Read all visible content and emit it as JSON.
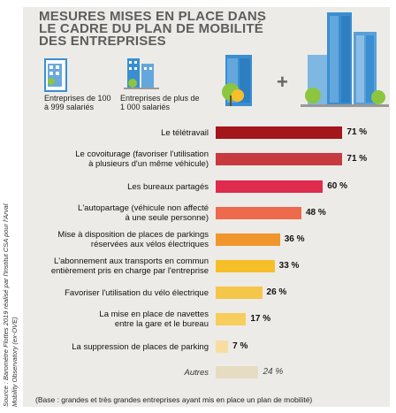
{
  "title": "MESURES MISES EN PLACE DANS LE CADRE DU PLAN DE MOBILITÉ DES ENTREPRISES",
  "source": "Source : Baromètre Flottes 2019 réalisé par l'Institut CSA pour l'Arval Mobility Observatory (ex-OVE)",
  "legend": {
    "small": "Entreprises de 100 à 999 salariés",
    "large": "Entreprises de plus de 1 000 salariés",
    "plus": "+"
  },
  "footnote": "(Base : grandes et très grandes entreprises ayant mis en place un plan de mobilité)",
  "colors": {
    "background": "#ecebe7",
    "building_blue": "#3a8fd0",
    "tree_green": "#8cc63f"
  },
  "chart_data": {
    "type": "bar",
    "orientation": "horizontal",
    "categories": [
      "Le télétravail",
      "Le covoiturage (favoriser l'utilisation à plusieurs d'un même véhicule)",
      "Les bureaux partagés",
      "L'autopartage (véhicule non affecté à une seule personne)",
      "Mise à disposition de places de parkings réservées aux vélos électriques",
      "L'abonnement aux transports en commun entièrement pris en charge par l'entreprise",
      "Favoriser l'utilisation du vélo électrique",
      "La mise en place de navettes entre la gare et le bureau",
      "La suppression de places de parking",
      "Autres"
    ],
    "label_lines": [
      [
        "Le télétravail"
      ],
      [
        "Le covoiturage (favoriser l'utilisation",
        "à plusieurs d'un même véhicule)"
      ],
      [
        "Les bureaux partagés"
      ],
      [
        "L'autopartage (véhicule non affecté",
        "à une seule personne)"
      ],
      [
        "Mise à disposition de places de parkings",
        "réservées aux vélos électriques"
      ],
      [
        "L'abonnement aux transports en commun",
        "entièrement pris en charge par l'entreprise"
      ],
      [
        "Favoriser l'utilisation du vélo électrique"
      ],
      [
        "La mise en place de navettes",
        "entre la gare et le bureau"
      ],
      [
        "La suppression de places de parking"
      ],
      [
        "Autres"
      ]
    ],
    "values": [
      71,
      71,
      60,
      48,
      36,
      33,
      26,
      17,
      7,
      24
    ],
    "value_labels": [
      "71 %",
      "71 %",
      "60 %",
      "48 %",
      "36 %",
      "33 %",
      "26 %",
      "17 %",
      "7 %",
      "24 %"
    ],
    "bar_colors": [
      "#a3161a",
      "#c73a3f",
      "#de2b4e",
      "#ee6a4c",
      "#f0962c",
      "#f6bf2a",
      "#f4c64a",
      "#f7cd5b",
      "#f7dea0",
      "#e6dcc4"
    ],
    "unit": "%"
  }
}
